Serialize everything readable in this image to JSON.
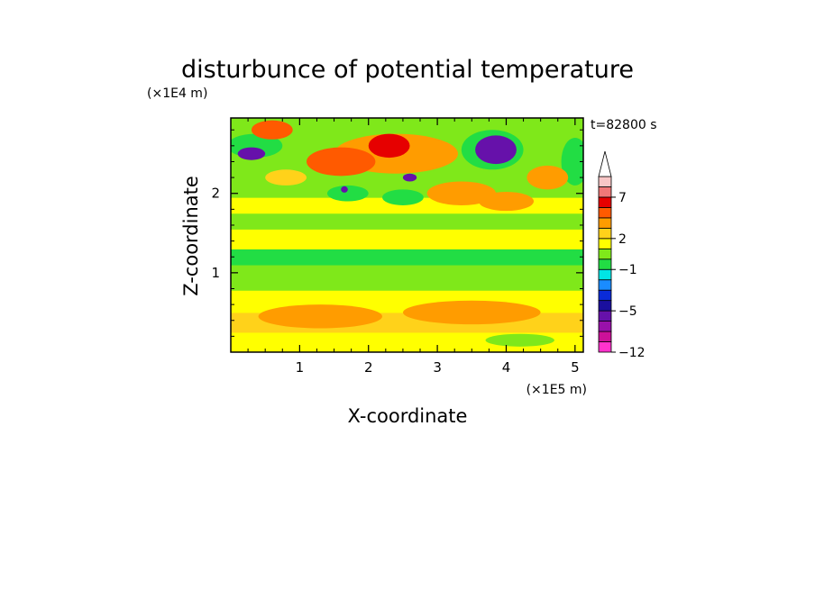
{
  "chart_data": {
    "type": "heatmap",
    "title": "disturbunce of potential temperature",
    "xlabel": "X-coordinate",
    "ylabel": "Z-coordinate",
    "x_unit": "(×1E5 m)",
    "y_unit": "(×1E4 m)",
    "time_label": "t=82800 s",
    "xlim": [
      0,
      5.12
    ],
    "ylim": [
      0,
      2.95
    ],
    "x_ticks": [
      "1",
      "2",
      "3",
      "4",
      "5"
    ],
    "y_ticks": [
      "1",
      "2"
    ],
    "colorbar": {
      "levels": [
        -12,
        -10,
        -8,
        -6,
        -5,
        -4,
        -3,
        -2,
        -1,
        0,
        1,
        2,
        3,
        4,
        5,
        7,
        9
      ],
      "labeled_levels": [
        "-12",
        "-5",
        "-1",
        "2",
        "7"
      ],
      "colors": [
        "#ff33cc",
        "#cc1199",
        "#9911aa",
        "#6611aa",
        "#1a0f9e",
        "#0a2bd8",
        "#1a8cff",
        "#00e5e5",
        "#22dd44",
        "#7fe81a",
        "#ffff00",
        "#ffd21a",
        "#ff9c00",
        "#ff5a00",
        "#e60000",
        "#f07878",
        "#f8c6c6"
      ],
      "extend": "max"
    },
    "bands": [
      {
        "z": [
          0.0,
          0.25
        ],
        "value": 1.5
      },
      {
        "z": [
          0.25,
          0.5
        ],
        "value": 2.0
      },
      {
        "z": [
          0.5,
          0.78
        ],
        "value": 1.5
      },
      {
        "z": [
          0.78,
          0.95
        ],
        "value": 0.5
      },
      {
        "z": [
          0.95,
          1.1
        ],
        "value": 0.2
      },
      {
        "z": [
          1.1,
          1.3
        ],
        "value": -0.5
      },
      {
        "z": [
          1.3,
          1.55
        ],
        "value": 1.0
      },
      {
        "z": [
          1.55,
          1.75
        ],
        "value": 0.5
      },
      {
        "z": [
          1.75,
          1.95
        ],
        "value": 1.5
      },
      {
        "z": [
          1.95,
          2.2
        ],
        "value": 0.3
      },
      {
        "z": [
          2.2,
          2.5
        ],
        "value": 0.8
      },
      {
        "z": [
          2.5,
          2.95
        ],
        "value": 0.5
      }
    ],
    "anomalies": [
      {
        "x": 2.4,
        "z": 2.5,
        "rx": 0.9,
        "rz": 0.25,
        "value": 3.5
      },
      {
        "x": 1.6,
        "z": 2.4,
        "rx": 0.5,
        "rz": 0.18,
        "value": 4.0
      },
      {
        "x": 2.3,
        "z": 2.6,
        "rx": 0.3,
        "rz": 0.15,
        "value": 5.0
      },
      {
        "x": 3.8,
        "z": 2.55,
        "rx": 0.45,
        "rz": 0.25,
        "value": -1.0
      },
      {
        "x": 3.85,
        "z": 2.55,
        "rx": 0.3,
        "rz": 0.18,
        "value": -5.5
      },
      {
        "x": 0.35,
        "z": 2.6,
        "rx": 0.4,
        "rz": 0.15,
        "value": -1.0
      },
      {
        "x": 0.3,
        "z": 2.5,
        "rx": 0.2,
        "rz": 0.08,
        "value": -5.5
      },
      {
        "x": 0.6,
        "z": 2.8,
        "rx": 0.3,
        "rz": 0.12,
        "value": 4.0
      },
      {
        "x": 3.35,
        "z": 2.0,
        "rx": 0.5,
        "rz": 0.15,
        "value": 3.0
      },
      {
        "x": 4.0,
        "z": 1.9,
        "rx": 0.4,
        "rz": 0.12,
        "value": 3.0
      },
      {
        "x": 1.7,
        "z": 2.0,
        "rx": 0.3,
        "rz": 0.1,
        "value": -0.5
      },
      {
        "x": 2.5,
        "z": 1.95,
        "rx": 0.3,
        "rz": 0.1,
        "value": -0.5
      },
      {
        "x": 1.65,
        "z": 2.05,
        "rx": 0.05,
        "rz": 0.04,
        "value": -5.5
      },
      {
        "x": 2.6,
        "z": 2.2,
        "rx": 0.1,
        "rz": 0.05,
        "value": -5.5
      },
      {
        "x": 1.3,
        "z": 0.45,
        "rx": 0.9,
        "rz": 0.15,
        "value": 3.0
      },
      {
        "x": 3.5,
        "z": 0.5,
        "rx": 1.0,
        "rz": 0.15,
        "value": 3.0
      },
      {
        "x": 4.2,
        "z": 0.15,
        "rx": 0.5,
        "rz": 0.08,
        "value": 0.5
      },
      {
        "x": 5.0,
        "z": 2.4,
        "rx": 0.2,
        "rz": 0.3,
        "value": -0.5
      },
      {
        "x": 4.6,
        "z": 2.2,
        "rx": 0.3,
        "rz": 0.15,
        "value": 3.0
      },
      {
        "x": 0.8,
        "z": 2.2,
        "rx": 0.3,
        "rz": 0.1,
        "value": 2.5
      }
    ]
  }
}
